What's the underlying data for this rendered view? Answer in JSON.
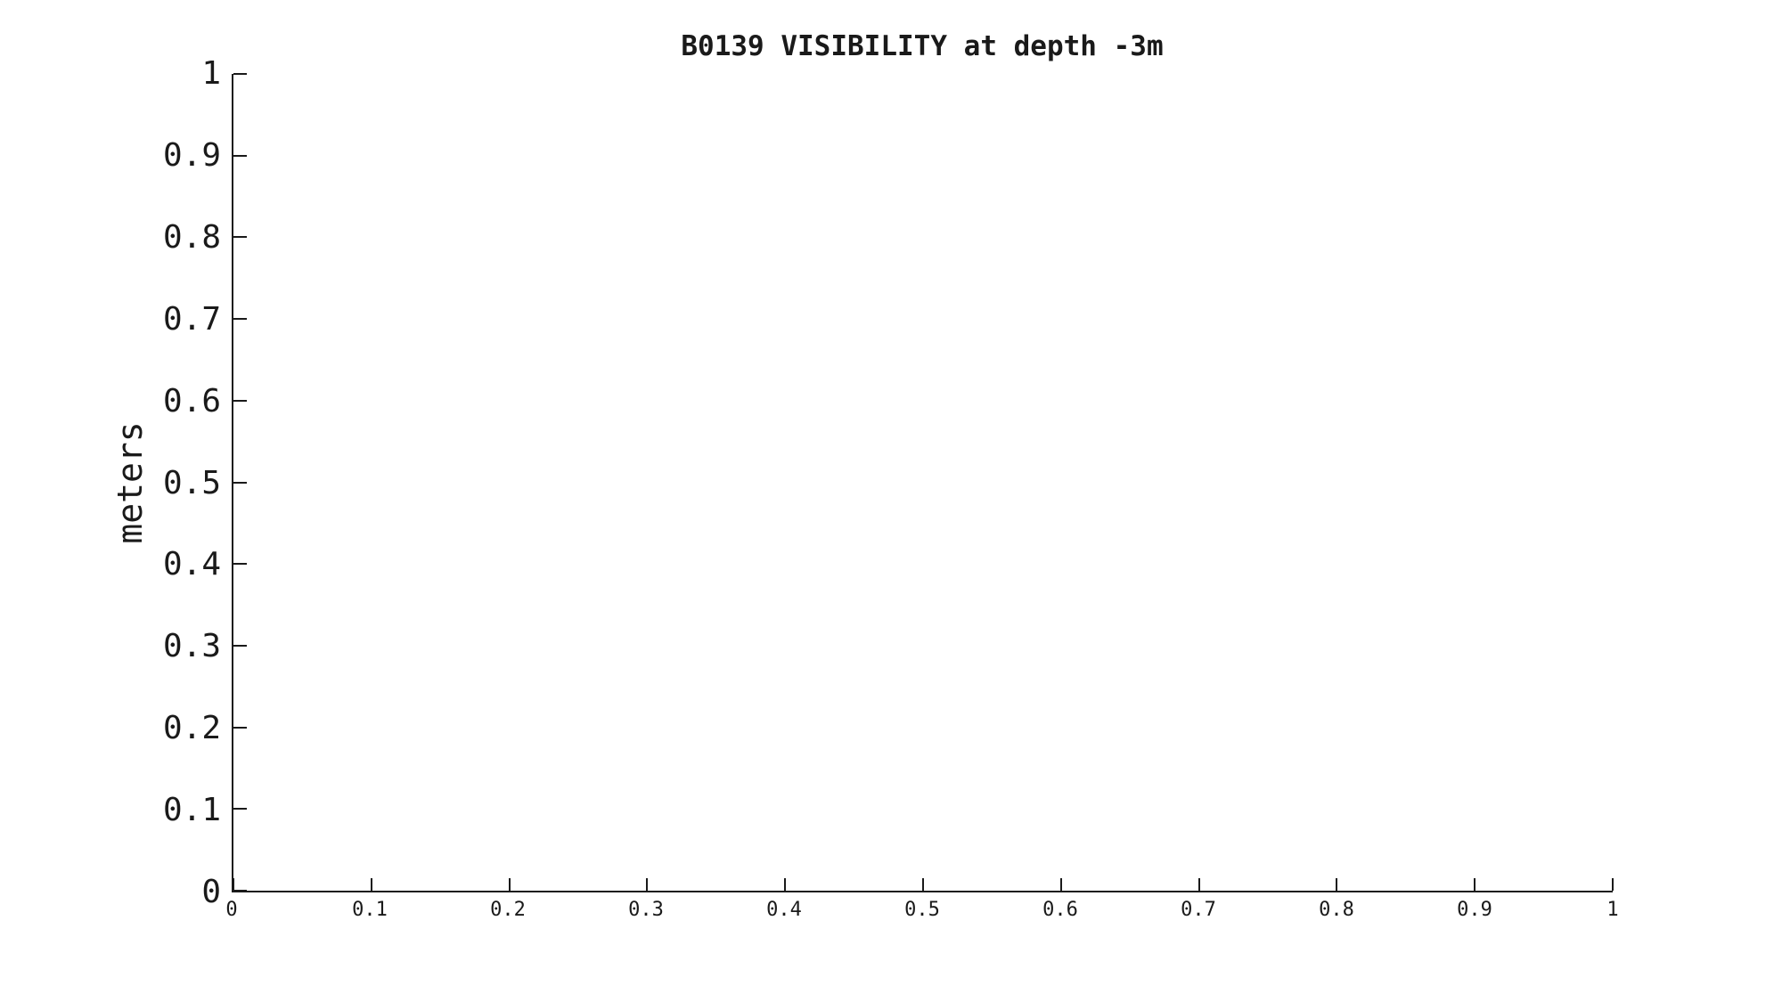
{
  "figure": {
    "background": "#ffffff",
    "ink_color": "#1a1a1a"
  },
  "chart_data": {
    "type": "line",
    "title": "B0139 VISIBILITY at depth -3m",
    "xlabel": "",
    "ylabel": "meters",
    "xlim": [
      0,
      1
    ],
    "ylim": [
      0,
      1
    ],
    "xticks": [
      0,
      0.1,
      0.2,
      0.3,
      0.4,
      0.5,
      0.6,
      0.7,
      0.8,
      0.9,
      1
    ],
    "xtick_labels": [
      "0",
      "0.1",
      "0.2",
      "0.3",
      "0.4",
      "0.5",
      "0.6",
      "0.7",
      "0.8",
      "0.9",
      "1"
    ],
    "yticks": [
      0,
      0.1,
      0.2,
      0.3,
      0.4,
      0.5,
      0.6,
      0.7,
      0.8,
      0.9,
      1
    ],
    "ytick_labels": [
      "0",
      "0.1",
      "0.2",
      "0.3",
      "0.4",
      "0.5",
      "0.6",
      "0.7",
      "0.8",
      "0.9",
      "1"
    ],
    "grid": false,
    "legend": null,
    "series": []
  }
}
